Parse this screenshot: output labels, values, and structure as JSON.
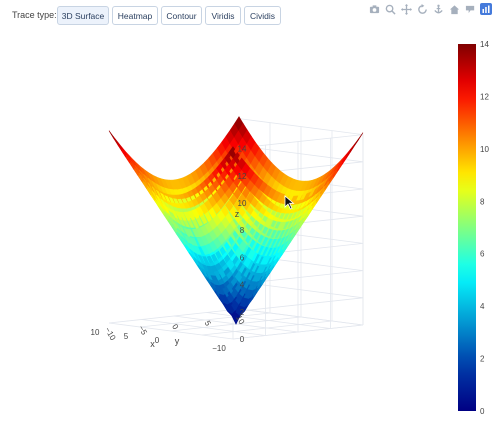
{
  "toolbar": {
    "label": "Trace type:",
    "buttons": [
      "3D Surface",
      "Heatmap",
      "Contour",
      "Viridis",
      "Cividis"
    ],
    "active": "3D Surface"
  },
  "modebar": [
    "camera-icon",
    "zoom-icon",
    "pan-icon",
    "orbit-icon",
    "turntable-icon",
    "home-icon",
    "hover-icon",
    "plotly-logo-icon"
  ],
  "chart_data": {
    "type": "surface",
    "function": "z = sqrt(x^2 + y^2)",
    "x_range": [
      -10,
      10
    ],
    "y_range": [
      -10,
      10
    ],
    "z_range": [
      0,
      14
    ],
    "axis_labels": {
      "x": "x",
      "y": "y",
      "z": "z"
    },
    "x_ticks": [
      "−10",
      "0",
      "5",
      "10"
    ],
    "y_ticks": [
      "−10",
      "−5",
      "0",
      "5",
      "10"
    ],
    "z_ticks": [
      "0",
      "2",
      "4",
      "6",
      "8",
      "10",
      "12",
      "14"
    ],
    "colorscale": "Jet",
    "colorbar": {
      "min": 0,
      "max": 14,
      "ticks": [
        "0",
        "2",
        "4",
        "6",
        "8",
        "10",
        "12",
        "14"
      ]
    },
    "grid": true
  }
}
